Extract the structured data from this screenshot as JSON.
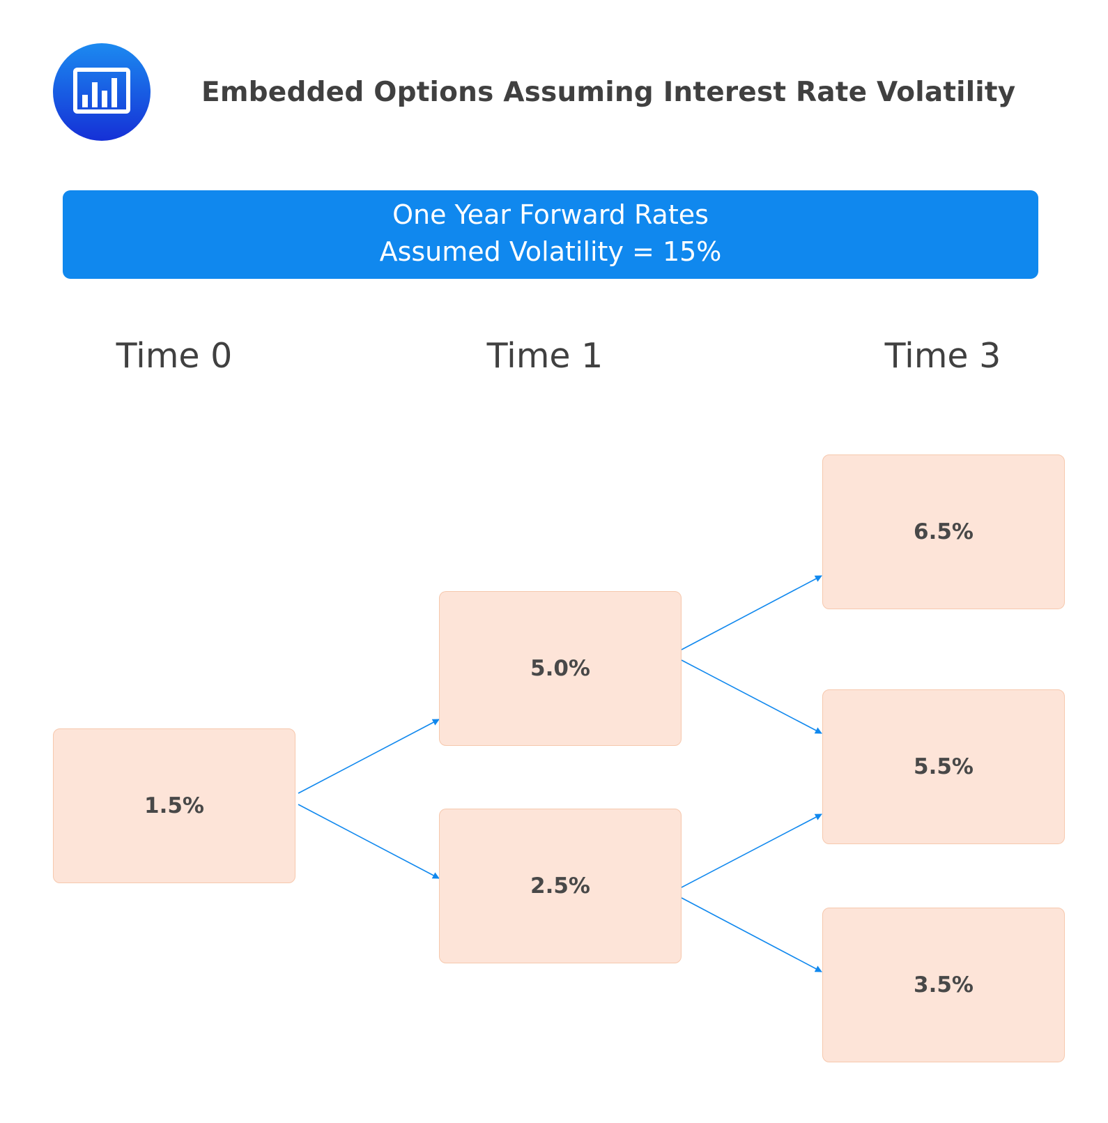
{
  "header": {
    "logo_icon": "bar-chart-icon",
    "title": "Embedded Options Assuming Interest Rate Volatility"
  },
  "banner": {
    "line1": "One Year Forward Rates",
    "line2": "Assumed Volatility = 15%",
    "color": "#1088ee"
  },
  "columns": [
    {
      "label": "Time 0"
    },
    {
      "label": "Time 1"
    },
    {
      "label": "Time 3"
    }
  ],
  "nodes": {
    "t0": {
      "value": "1.5%"
    },
    "t1_up": {
      "value": "5.0%"
    },
    "t1_down": {
      "value": "2.5%"
    },
    "t3_top": {
      "value": "6.5%"
    },
    "t3_mid": {
      "value": "5.5%"
    },
    "t3_bottom": {
      "value": "3.5%"
    }
  },
  "colors": {
    "node_fill": "#fde4d8",
    "node_border": "#f6c8ad",
    "arrow": "#1088ee",
    "text": "#404040"
  }
}
